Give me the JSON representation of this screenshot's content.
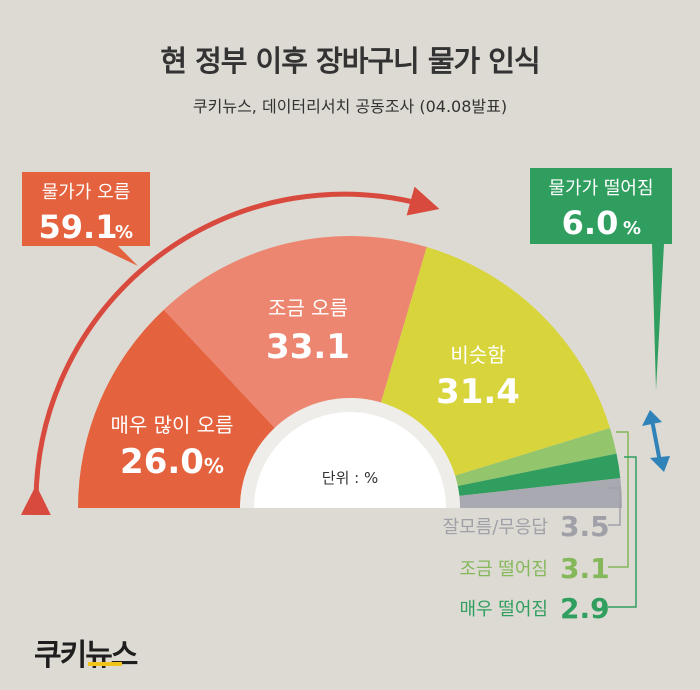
{
  "title": "현 정부 이후 장바구니 물가 인식",
  "subtitle": "쿠키뉴스, 데이터리서치 공동조사 (04.08발표)",
  "logo": "쿠키뉴스",
  "chart_data": {
    "type": "pie",
    "unit_label": "단위 : %",
    "slices": [
      {
        "label": "매우 많이 오름",
        "value": 26.0,
        "value_text": "26.0",
        "suffix": "%",
        "color": "#e4623e"
      },
      {
        "label": "조금 오름",
        "value": 33.1,
        "value_text": "33.1",
        "suffix": "",
        "color": "#ed8670"
      },
      {
        "label": "비슷함",
        "value": 31.4,
        "value_text": "31.4",
        "suffix": "",
        "color": "#d8d43c"
      },
      {
        "label": "조금 떨어짐",
        "value": 3.1,
        "value_text": "3.1",
        "suffix": "",
        "color": "#93c56c"
      },
      {
        "label": "매우 떨어짐",
        "value": 2.9,
        "value_text": "2.9",
        "suffix": "",
        "color": "#2f9e5f"
      },
      {
        "label": "잘모름/무응답",
        "value": 3.5,
        "value_text": "3.5",
        "suffix": "",
        "color": "#a9a9b1"
      }
    ],
    "callouts": {
      "up": {
        "label": "물가가 오름",
        "value": "59.1",
        "suffix": "%",
        "color": "#e4623e"
      },
      "down": {
        "label": "물가가 떨어짐",
        "value": "6.0",
        "suffix": "%",
        "color": "#2f9e5f"
      }
    }
  }
}
